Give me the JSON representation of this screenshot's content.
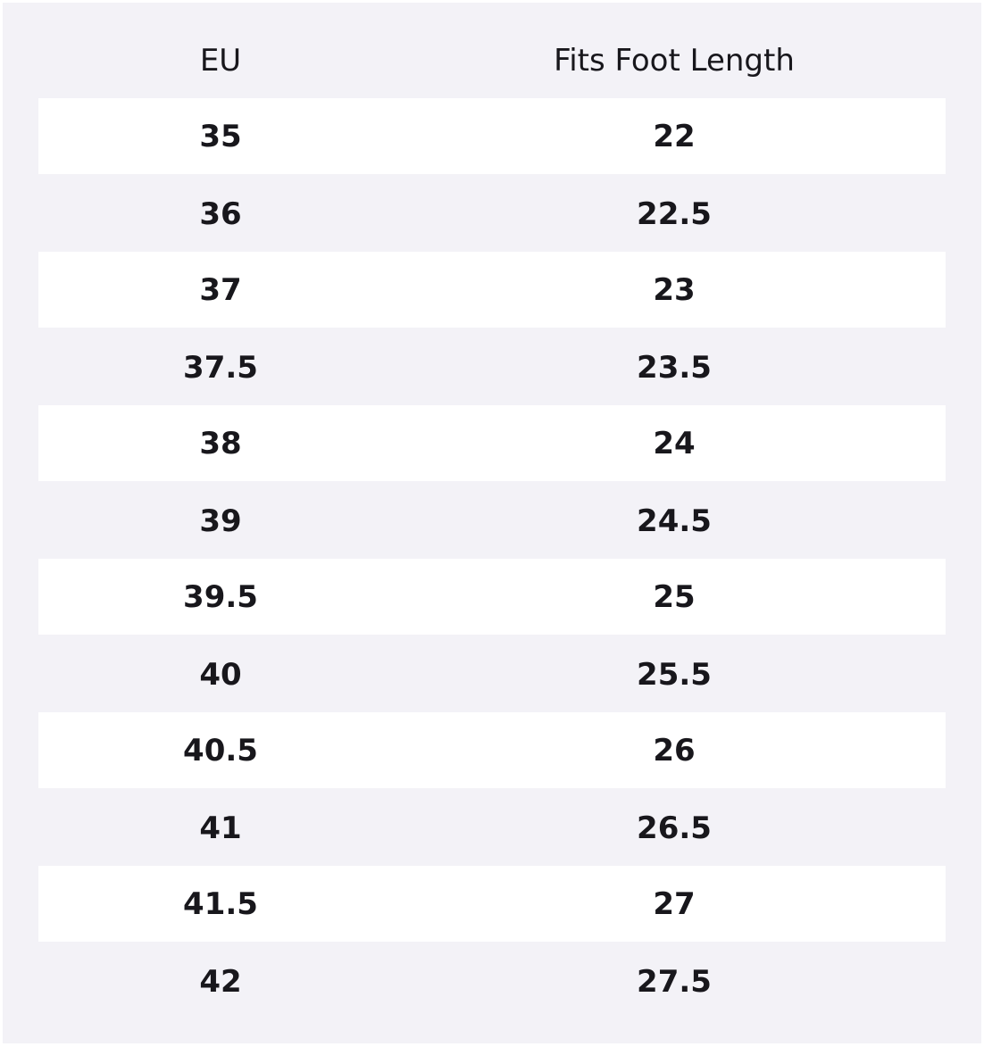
{
  "table": {
    "header": [
      "EU",
      "Fits Foot Length"
    ],
    "rows": [
      [
        35,
        22
      ],
      [
        36,
        22.5
      ],
      [
        37,
        23
      ],
      [
        37.5,
        23.5
      ],
      [
        38,
        24
      ],
      [
        39,
        24.5
      ],
      [
        39.5,
        25
      ],
      [
        40,
        25.5
      ],
      [
        40.5,
        26
      ],
      [
        41,
        26.5
      ],
      [
        41.5,
        27
      ],
      [
        42,
        27.5
      ]
    ]
  }
}
